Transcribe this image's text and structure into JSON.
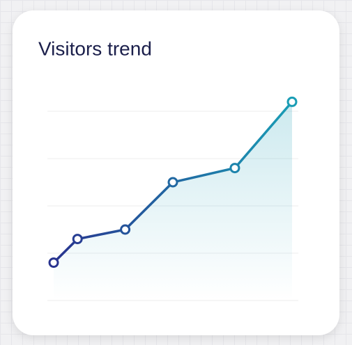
{
  "chart_data": {
    "type": "line",
    "title": "Visitors trend",
    "x": [
      0,
      1,
      3,
      5,
      7.6,
      10
    ],
    "values": [
      0.8,
      1.3,
      1.5,
      2.5,
      2.8,
      4.2
    ],
    "color": [
      "#28338f",
      "#1a9db5"
    ],
    "xlim": [
      0,
      10
    ],
    "ylim": [
      0,
      4.2
    ],
    "yticks": [
      0,
      1,
      2,
      3,
      4
    ],
    "grid": true
  }
}
